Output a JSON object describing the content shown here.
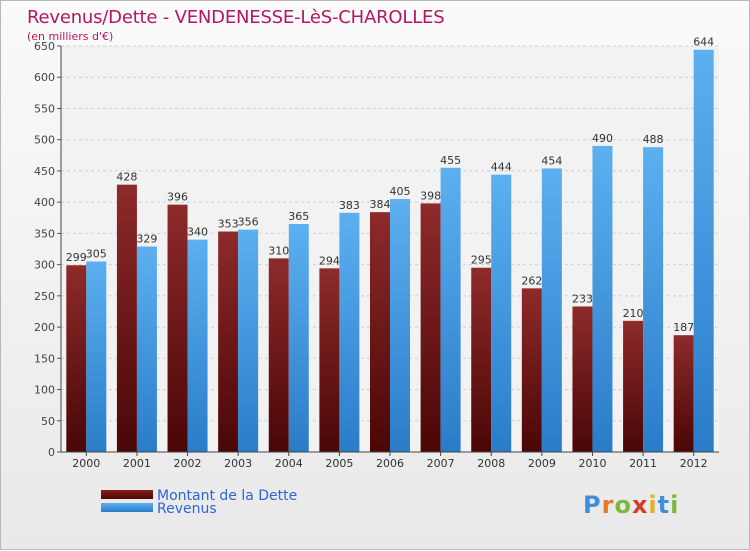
{
  "title": "Revenus/Dette - VENDENESSE-LèS-CHAROLLES",
  "subtitle": "(en milliers d'€)",
  "logo": {
    "text": "Proxiti"
  },
  "colors": {
    "dette": "#7a1818",
    "revenus": "#4a9fe6",
    "title": "#b5175e",
    "legend_text": "#2f64d6"
  },
  "legend": {
    "dette_label": "Montant de la Dette",
    "revenus_label": "Revenus"
  },
  "chart_data": {
    "type": "bar",
    "title": "Revenus/Dette - VENDENESSE-LèS-CHAROLLES",
    "subtitle": "(en milliers d'€)",
    "xlabel": "",
    "ylabel": "",
    "ylim": [
      0,
      650
    ],
    "yticks": [
      0,
      50,
      100,
      150,
      200,
      250,
      300,
      350,
      400,
      450,
      500,
      550,
      600,
      650
    ],
    "grid": true,
    "legend_position": "bottom-left",
    "categories": [
      "2000",
      "2001",
      "2002",
      "2003",
      "2004",
      "2005",
      "2006",
      "2007",
      "2008",
      "2009",
      "2010",
      "2011",
      "2012"
    ],
    "series": [
      {
        "name": "Montant de la Dette",
        "values": [
          299,
          428,
          396,
          353,
          310,
          294,
          384,
          398,
          295,
          262,
          233,
          210,
          187
        ]
      },
      {
        "name": "Revenus",
        "values": [
          305,
          329,
          340,
          356,
          365,
          383,
          405,
          455,
          444,
          454,
          490,
          488,
          644
        ]
      }
    ]
  }
}
